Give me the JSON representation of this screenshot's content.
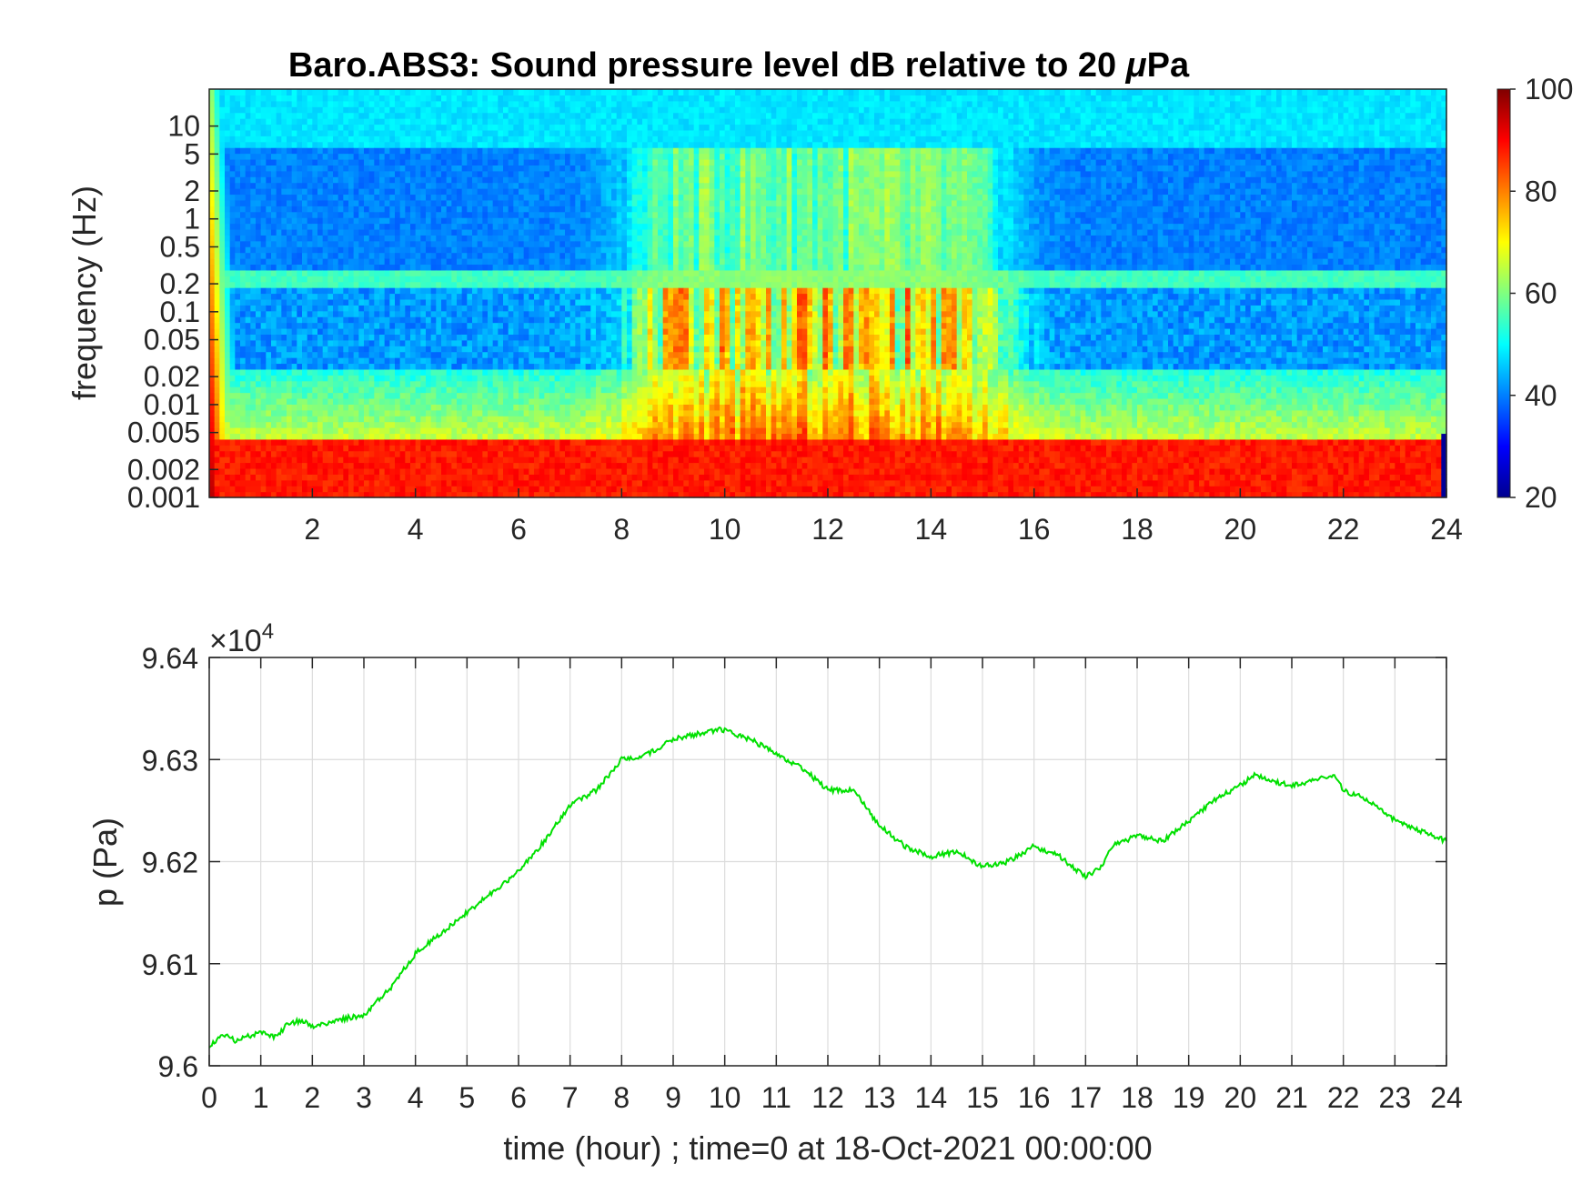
{
  "chart_data": [
    {
      "type": "heatmap",
      "title_text": "Baro.ABS3: Sound pressure level dB relative to 20 ",
      "title_mu": "μ",
      "title_unit": "Pa",
      "ylabel": "frequency (Hz)",
      "xlabel": "",
      "xlim": [
        0,
        24
      ],
      "x_ticks": [
        "2",
        "4",
        "6",
        "8",
        "10",
        "12",
        "14",
        "16",
        "18",
        "20",
        "22",
        "24"
      ],
      "y_scale": "log",
      "ylim": [
        0.001,
        25
      ],
      "y_ticks": [
        "10",
        "5",
        "2",
        "1",
        "0.5",
        "0.2",
        "0.1",
        "0.05",
        "0.02",
        "0.01",
        "0.005",
        "0.002",
        "0.001"
      ],
      "colorbar": {
        "colormap": "jet",
        "clim": [
          20,
          100
        ],
        "ticks": [
          "100",
          "80",
          "60",
          "40",
          "20"
        ]
      },
      "description_levels": {
        "above_5Hz": 48,
        "band_0.3_to_4Hz_quiet_hours": 40,
        "band_0.3_to_4Hz_10_to_15h": 60,
        "below_0.003Hz": 88
      }
    },
    {
      "type": "line",
      "xlabel": "time (hour) ; time=0 at 18-Oct-2021 00:00:00",
      "ylabel": "p (Pa)",
      "exponent_label": "×10",
      "exponent_power": "4",
      "xlim": [
        0,
        24
      ],
      "ylim": [
        96000,
        96400
      ],
      "x_ticks": [
        "0",
        "1",
        "2",
        "3",
        "4",
        "5",
        "6",
        "7",
        "8",
        "9",
        "10",
        "11",
        "12",
        "13",
        "14",
        "15",
        "16",
        "17",
        "18",
        "19",
        "20",
        "21",
        "22",
        "23",
        "24"
      ],
      "y_ticks": [
        "9.64",
        "9.63",
        "9.62",
        "9.61",
        "9.6"
      ],
      "grid": true,
      "line_color": "#00e000",
      "series": [
        {
          "x": [
            0,
            0.3,
            0.5,
            1,
            1.3,
            1.5,
            1.8,
            2,
            2.5,
            2.8,
            3,
            3.5,
            4,
            4.5,
            5,
            5.5,
            6,
            6.5,
            7,
            7.5,
            8,
            8.5,
            9,
            9.5,
            9.9,
            10.5,
            11,
            11.5,
            12,
            12.5,
            13,
            13.5,
            14,
            14.5,
            15,
            15.5,
            16,
            16.5,
            17,
            17.3,
            17.5,
            18,
            18.5,
            19,
            19.5,
            20,
            20.3,
            20.5,
            21,
            21.5,
            21.8,
            22,
            22.5,
            23,
            23.5,
            24
          ],
          "y": [
            96020,
            96030,
            96025,
            96032,
            96028,
            96040,
            96045,
            96038,
            96045,
            96048,
            96050,
            96075,
            96110,
            96130,
            96150,
            96170,
            96190,
            96220,
            96255,
            96270,
            96300,
            96305,
            96320,
            96325,
            96330,
            96320,
            96305,
            96292,
            96270,
            96270,
            96235,
            96215,
            96205,
            96210,
            96195,
            96200,
            96215,
            96205,
            96185,
            96195,
            96215,
            96225,
            96220,
            96240,
            96260,
            96275,
            96285,
            96280,
            96275,
            96280,
            96285,
            96270,
            96260,
            96240,
            96230,
            96220
          ]
        }
      ]
    }
  ]
}
